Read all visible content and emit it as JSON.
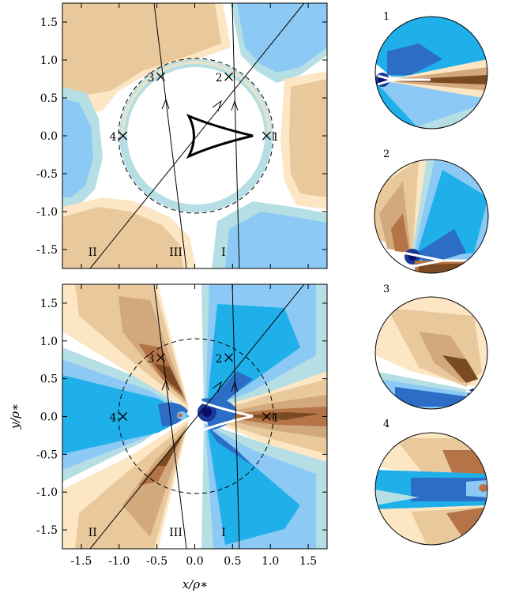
{
  "chart_data": {
    "type": "heatmap",
    "xlabel": "x/ρ∗",
    "ylabel": "y/ρ∗",
    "xlim": [
      -1.75,
      1.75
    ],
    "ylim": [
      -1.75,
      1.75
    ],
    "x_ticks": [
      -1.5,
      -1.0,
      -0.5,
      0.0,
      0.5,
      1.0,
      1.5
    ],
    "x_tick_labels": [
      "-1.5",
      "-1.0",
      "-0.5",
      "0.0",
      "0.5",
      "1.0",
      "1.5"
    ],
    "y_ticks": [
      1.5,
      1.0,
      0.5,
      0.0,
      -0.5,
      -1.0,
      -1.5
    ],
    "y_tick_labels": [
      "1.5",
      "1.0",
      "0.5",
      "0.0",
      "-0.5",
      "-1.0",
      "-1.5"
    ],
    "source_circle_radius": 1.0,
    "points": [
      {
        "label": "1",
        "x": 0.95,
        "y": 0.0
      },
      {
        "label": "2",
        "x": 0.45,
        "y": 0.78
      },
      {
        "label": "3",
        "x": -0.45,
        "y": 0.78
      },
      {
        "label": "4",
        "x": -0.95,
        "y": 0.0
      }
    ],
    "tracks": [
      {
        "label": "I",
        "x": [
          0.45,
          0.55
        ],
        "y": [
          1.75,
          -1.75
        ]
      },
      {
        "label": "II",
        "x": [
          -1.2,
          1.4
        ],
        "y": [
          -1.75,
          1.75
        ]
      },
      {
        "label": "III",
        "x": [
          -0.55,
          -0.12
        ],
        "y": [
          1.75,
          -1.75
        ]
      }
    ],
    "inset_labels": [
      "1",
      "2",
      "3",
      "4"
    ],
    "colors": {
      "positive_scale": [
        "#fce6c4",
        "#e9c99c",
        "#d2a97c",
        "#b57348",
        "#7a4a22"
      ],
      "negative_scale": [
        "#b5dfe4",
        "#8ccaf5",
        "#1fb0ea",
        "#2c6ec5",
        "#1a3897",
        "#0c0c6a"
      ]
    }
  }
}
